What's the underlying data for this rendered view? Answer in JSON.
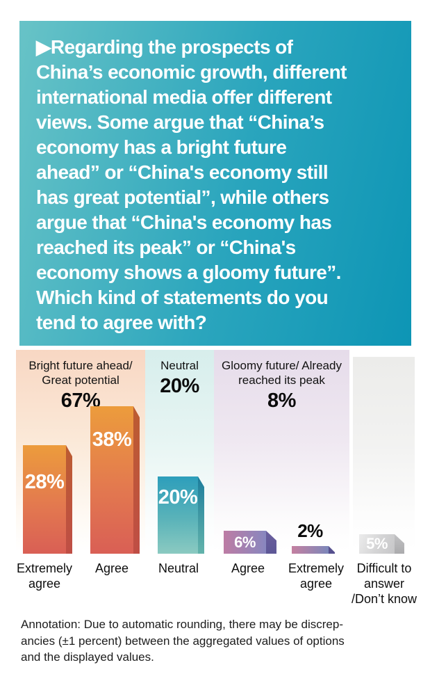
{
  "header": {
    "question": "▶Regarding the prospects of\nChina’s economic growth, different\ninternational media offer different\nviews. Some argue that “China’s\neconomy has a bright future\nahead” or “China's economy still\nhas great potential”, while others\nargue that “China's economy has\nreached its peak” or “China's\neconomy shows a gloomy future”.\nWhich kind of statements do you\ntend to agree with?",
    "background_gradient": [
      "#68c3c7",
      "#0d95b5"
    ],
    "text_color": "#ffffff"
  },
  "chart_data": {
    "type": "bar",
    "title": "Which kind of statements do you tend to agree with?",
    "categories": [
      "Extremely agree",
      "Agree",
      "Neutral",
      "Agree",
      "Extremely agree",
      "Difficult to answer /Don't know"
    ],
    "values": [
      28,
      38,
      20,
      6,
      2,
      5
    ],
    "value_labels": [
      "28%",
      "38%",
      "20%",
      "6%",
      "2%",
      "5%"
    ],
    "ylim": [
      0,
      40
    ],
    "grid": false,
    "legend": "none",
    "groups": [
      {
        "label": "Bright future ahead/\nGreat potential",
        "total": "67%",
        "members": [
          "Extremely agree",
          "Agree"
        ],
        "panel_color": "#f8d7c3",
        "bar_colors": [
          "#ec9c3c",
          "#d95f55"
        ]
      },
      {
        "label": "Neutral",
        "total": "20%",
        "members": [
          "Neutral"
        ],
        "panel_color": "#d7eeec",
        "bar_colors": [
          "#2d9ebb",
          "#8bcac1"
        ]
      },
      {
        "label": "Gloomy future/ Already\nreached its peak",
        "total": "8%",
        "members": [
          "Agree",
          "Extremely agree"
        ],
        "panel_color": "#e6dcea",
        "bar_colors": [
          "#bd7ca4",
          "#8887bf"
        ]
      },
      {
        "label": "",
        "total": "",
        "members": [
          "Difficult to answer /Don't know"
        ],
        "panel_color": "#ececea",
        "bar_colors": [
          "#ececec",
          "#c6c6c8"
        ]
      }
    ]
  },
  "bars": {
    "v1": "28%",
    "v2": "38%",
    "v3": "20%",
    "v4": "6%",
    "v5": "2%",
    "v6": "5%"
  },
  "category_labels": {
    "c1": "Extremely\nagree",
    "c2": "Agree",
    "c3": "Neutral",
    "c4": "Agree",
    "c5": "Extremely\nagree",
    "c6": "Difficult to\nanswer\n/Don’t know"
  },
  "annotation": {
    "text": "Annotation: Due to automatic rounding, there may be discrep-\nancies (±1 percent) between the aggregated values of options\nand the displayed values."
  }
}
